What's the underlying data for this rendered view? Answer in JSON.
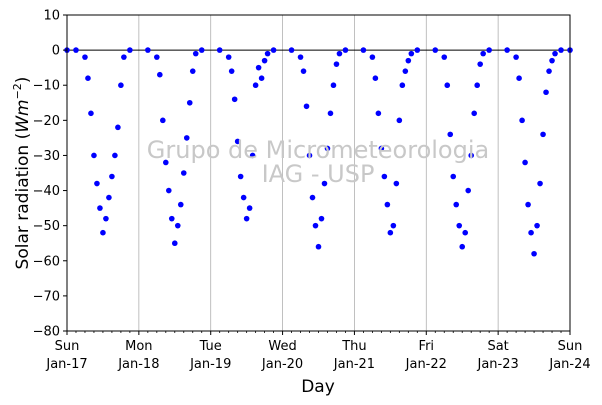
{
  "chart_data": {
    "type": "scatter",
    "xlabel": "Day",
    "ylabel_prefix": "Solar radiation (",
    "ylabel_unit_base": "Wm",
    "ylabel_unit_exp": "−2",
    "ylabel_suffix": ")",
    "ylim": [
      -80,
      10
    ],
    "y_ticks": [
      10,
      0,
      -10,
      -20,
      -30,
      -40,
      -50,
      -60,
      -70,
      -80
    ],
    "xlim": [
      "2016-01-17",
      "2016-01-24"
    ],
    "x_ticks": [
      {
        "date": "2016-01-17",
        "weekday": "Sun",
        "label": "Jan-17"
      },
      {
        "date": "2016-01-18",
        "weekday": "Mon",
        "label": "Jan-18"
      },
      {
        "date": "2016-01-19",
        "weekday": "Tue",
        "label": "Jan-19"
      },
      {
        "date": "2016-01-20",
        "weekday": "Wed",
        "label": "Jan-20"
      },
      {
        "date": "2016-01-21",
        "weekday": "Thu",
        "label": "Jan-21"
      },
      {
        "date": "2016-01-22",
        "weekday": "Fri",
        "label": "Jan-22"
      },
      {
        "date": "2016-01-23",
        "weekday": "Sat",
        "label": "Jan-23"
      },
      {
        "date": "2016-01-24",
        "weekday": "Sun",
        "label": "Jan-24"
      }
    ],
    "grid": "vertical",
    "reference_line_y": 0,
    "marker_color": "#0000ff",
    "annotation": {
      "line1": "Grupo de Micrometeorologia",
      "line2": "IAG - USP"
    },
    "series": [
      {
        "x": [
          "2016-01-17 00:00",
          "2016-01-17 03:00",
          "2016-01-17 06:00",
          "2016-01-17 07:00",
          "2016-01-17 08:00",
          "2016-01-17 09:00",
          "2016-01-17 10:00",
          "2016-01-17 11:00",
          "2016-01-17 12:00",
          "2016-01-17 13:00",
          "2016-01-17 14:00",
          "2016-01-17 15:00",
          "2016-01-17 16:00",
          "2016-01-17 17:00",
          "2016-01-17 18:00",
          "2016-01-17 19:00",
          "2016-01-17 21:00",
          "2016-01-18 03:00",
          "2016-01-18 06:00",
          "2016-01-18 07:00",
          "2016-01-18 08:00",
          "2016-01-18 09:00",
          "2016-01-18 10:00",
          "2016-01-18 11:00",
          "2016-01-18 12:00",
          "2016-01-18 13:00",
          "2016-01-18 14:00",
          "2016-01-18 15:00",
          "2016-01-18 16:00",
          "2016-01-18 17:00",
          "2016-01-18 18:00",
          "2016-01-18 19:00",
          "2016-01-18 21:00",
          "2016-01-19 03:00",
          "2016-01-19 06:00",
          "2016-01-19 07:00",
          "2016-01-19 08:00",
          "2016-01-19 09:00",
          "2016-01-19 10:00",
          "2016-01-19 11:00",
          "2016-01-19 12:00",
          "2016-01-19 13:00",
          "2016-01-19 14:00",
          "2016-01-19 15:00",
          "2016-01-19 16:00",
          "2016-01-19 17:00",
          "2016-01-19 18:00",
          "2016-01-19 19:00",
          "2016-01-19 21:00",
          "2016-01-20 03:00",
          "2016-01-20 06:00",
          "2016-01-20 07:00",
          "2016-01-20 08:00",
          "2016-01-20 09:00",
          "2016-01-20 10:00",
          "2016-01-20 11:00",
          "2016-01-20 12:00",
          "2016-01-20 13:00",
          "2016-01-20 14:00",
          "2016-01-20 15:00",
          "2016-01-20 16:00",
          "2016-01-20 17:00",
          "2016-01-20 18:00",
          "2016-01-20 19:00",
          "2016-01-20 21:00",
          "2016-01-21 03:00",
          "2016-01-21 06:00",
          "2016-01-21 07:00",
          "2016-01-21 08:00",
          "2016-01-21 09:00",
          "2016-01-21 10:00",
          "2016-01-21 11:00",
          "2016-01-21 12:00",
          "2016-01-21 13:00",
          "2016-01-21 14:00",
          "2016-01-21 15:00",
          "2016-01-21 16:00",
          "2016-01-21 17:00",
          "2016-01-21 18:00",
          "2016-01-21 19:00",
          "2016-01-21 21:00",
          "2016-01-22 03:00",
          "2016-01-22 06:00",
          "2016-01-22 07:00",
          "2016-01-22 08:00",
          "2016-01-22 09:00",
          "2016-01-22 10:00",
          "2016-01-22 11:00",
          "2016-01-22 12:00",
          "2016-01-22 13:00",
          "2016-01-22 14:00",
          "2016-01-22 15:00",
          "2016-01-22 16:00",
          "2016-01-22 17:00",
          "2016-01-22 18:00",
          "2016-01-22 19:00",
          "2016-01-22 21:00",
          "2016-01-23 03:00",
          "2016-01-23 06:00",
          "2016-01-23 07:00",
          "2016-01-23 08:00",
          "2016-01-23 09:00",
          "2016-01-23 10:00",
          "2016-01-23 11:00",
          "2016-01-23 12:00",
          "2016-01-23 13:00",
          "2016-01-23 14:00",
          "2016-01-23 15:00",
          "2016-01-23 16:00",
          "2016-01-23 17:00",
          "2016-01-23 18:00",
          "2016-01-23 19:00",
          "2016-01-23 21:00",
          "2016-01-24 00:00"
        ],
        "y": [
          0,
          0,
          -2,
          -8,
          -18,
          -30,
          -38,
          -45,
          -52,
          -48,
          -42,
          -36,
          -30,
          -22,
          -10,
          -2,
          0,
          0,
          -2,
          -7,
          -20,
          -32,
          -40,
          -48,
          -55,
          -50,
          -44,
          -35,
          -25,
          -15,
          -6,
          -1,
          0,
          0,
          -2,
          -6,
          -14,
          -26,
          -36,
          -42,
          -48,
          -45,
          -30,
          -10,
          -5,
          -8,
          -3,
          -1,
          0,
          0,
          -2,
          -6,
          -16,
          -30,
          -42,
          -50,
          -56,
          -48,
          -38,
          -28,
          -18,
          -10,
          -4,
          -1,
          0,
          0,
          -2,
          -8,
          -18,
          -28,
          -36,
          -44,
          -52,
          -50,
          -38,
          -20,
          -10,
          -6,
          -3,
          -1,
          0,
          0,
          -2,
          -10,
          -24,
          -36,
          -44,
          -50,
          -56,
          -52,
          -40,
          -30,
          -18,
          -10,
          -4,
          -1,
          0,
          0,
          -2,
          -8,
          -20,
          -32,
          -44,
          -52,
          -58,
          -50,
          -38,
          -24,
          -12,
          -6,
          -3,
          -1,
          0,
          0
        ]
      }
    ]
  }
}
